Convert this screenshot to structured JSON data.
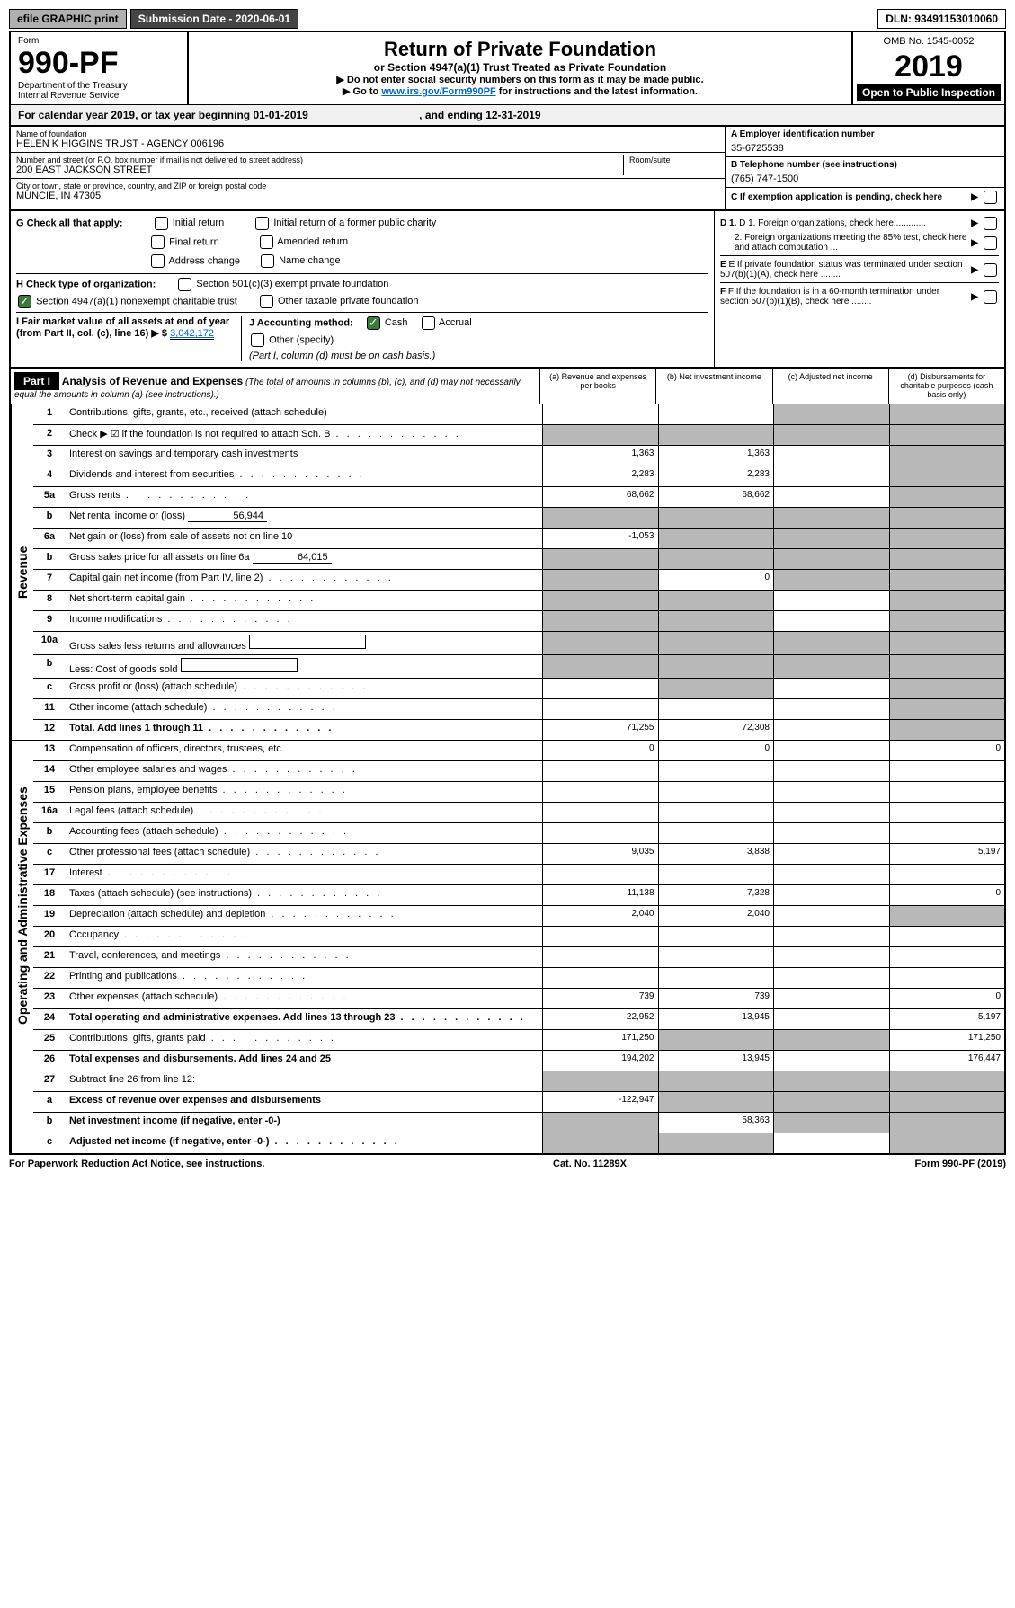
{
  "top": {
    "efile": "efile GRAPHIC print",
    "submission": "Submission Date - 2020-06-01",
    "dln": "DLN: 93491153010060"
  },
  "header": {
    "form_word": "Form",
    "form_num": "990-PF",
    "dept": "Department of the Treasury",
    "irs": "Internal Revenue Service",
    "title": "Return of Private Foundation",
    "subtitle": "or Section 4947(a)(1) Trust Treated as Private Foundation",
    "arrow1": "▶ Do not enter social security numbers on this form as it may be made public.",
    "arrow2_pre": "▶ Go to ",
    "arrow2_link": "www.irs.gov/Form990PF",
    "arrow2_post": " for instructions and the latest information.",
    "omb": "OMB No. 1545-0052",
    "year": "2019",
    "open": "Open to Public Inspection"
  },
  "cal": {
    "text_pre": "For calendar year 2019, or tax year beginning ",
    "begin": "01-01-2019",
    "text_mid": " , and ending ",
    "end": "12-31-2019"
  },
  "info": {
    "name_label": "Name of foundation",
    "name": "HELEN K HIGGINS TRUST - AGENCY 006196",
    "addr_label": "Number and street (or P.O. box number if mail is not delivered to street address)",
    "addr": "200 EAST JACKSON STREET",
    "room_label": "Room/suite",
    "city_label": "City or town, state or province, country, and ZIP or foreign postal code",
    "city": "MUNCIE, IN  47305",
    "a_label": "A Employer identification number",
    "a_val": "35-6725538",
    "b_label": "B Telephone number (see instructions)",
    "b_val": "(765) 747-1500",
    "c_label": "C If exemption application is pending, check here"
  },
  "checks": {
    "g": "G Check all that apply:",
    "g_items": [
      "Initial return",
      "Initial return of a former public charity",
      "Final return",
      "Amended return",
      "Address change",
      "Name change"
    ],
    "h": "H Check type of organization:",
    "h1": "Section 501(c)(3) exempt private foundation",
    "h2": "Section 4947(a)(1) nonexempt charitable trust",
    "h3": "Other taxable private foundation",
    "i": "I Fair market value of all assets at end of year (from Part II, col. (c), line 16) ▶ $",
    "i_val": "3,042,172",
    "j": "J Accounting method:",
    "j1": "Cash",
    "j2": "Accrual",
    "j3": "Other (specify)",
    "j_note": "(Part I, column (d) must be on cash basis.)",
    "d1": "D 1. Foreign organizations, check here.............",
    "d2": "2. Foreign organizations meeting the 85% test, check here and attach computation ...",
    "e": "E  If private foundation status was terminated under section 507(b)(1)(A), check here ........",
    "f": "F  If the foundation is in a 60-month termination under section 507(b)(1)(B), check here ........"
  },
  "part1": {
    "label": "Part I",
    "title": "Analysis of Revenue and Expenses",
    "note": " (The total of amounts in columns (b), (c), and (d) may not necessarily equal the amounts in column (a) (see instructions).)",
    "col_a": "(a) Revenue and expenses per books",
    "col_b": "(b) Net investment income",
    "col_c": "(c) Adjusted net income",
    "col_d": "(d) Disbursements for charitable purposes (cash basis only)"
  },
  "sides": {
    "revenue": "Revenue",
    "expenses": "Operating and Administrative Expenses"
  },
  "rows": [
    {
      "n": "1",
      "d": "Contributions, gifts, grants, etc., received (attach schedule)",
      "a": "",
      "b": "",
      "c": "g",
      "dd": "g"
    },
    {
      "n": "2",
      "d": "Check ▶ ☑ if the foundation is not required to attach Sch. B",
      "a": "g",
      "b": "g",
      "c": "g",
      "dd": "g",
      "dots": true
    },
    {
      "n": "3",
      "d": "Interest on savings and temporary cash investments",
      "a": "1,363",
      "b": "1,363",
      "c": "",
      "dd": "g"
    },
    {
      "n": "4",
      "d": "Dividends and interest from securities",
      "a": "2,283",
      "b": "2,283",
      "c": "",
      "dd": "g",
      "dots": true
    },
    {
      "n": "5a",
      "d": "Gross rents",
      "a": "68,662",
      "b": "68,662",
      "c": "",
      "dd": "g",
      "dots": true
    },
    {
      "n": "b",
      "d": "Net rental income or (loss)",
      "a": "g",
      "b": "g",
      "c": "g",
      "dd": "g",
      "inline": "56,944"
    },
    {
      "n": "6a",
      "d": "Net gain or (loss) from sale of assets not on line 10",
      "a": "-1,053",
      "b": "g",
      "c": "g",
      "dd": "g"
    },
    {
      "n": "b",
      "d": "Gross sales price for all assets on line 6a",
      "a": "g",
      "b": "g",
      "c": "g",
      "dd": "g",
      "inline": "64,015"
    },
    {
      "n": "7",
      "d": "Capital gain net income (from Part IV, line 2)",
      "a": "g",
      "b": "0",
      "c": "g",
      "dd": "g",
      "dots": true
    },
    {
      "n": "8",
      "d": "Net short-term capital gain",
      "a": "g",
      "b": "g",
      "c": "",
      "dd": "g",
      "dots": true
    },
    {
      "n": "9",
      "d": "Income modifications",
      "a": "g",
      "b": "g",
      "c": "",
      "dd": "g",
      "dots": true
    },
    {
      "n": "10a",
      "d": "Gross sales less returns and allowances",
      "a": "g",
      "b": "g",
      "c": "g",
      "dd": "g",
      "box": true
    },
    {
      "n": "b",
      "d": "Less: Cost of goods sold",
      "a": "g",
      "b": "g",
      "c": "g",
      "dd": "g",
      "dots": true,
      "box": true
    },
    {
      "n": "c",
      "d": "Gross profit or (loss) (attach schedule)",
      "a": "",
      "b": "g",
      "c": "",
      "dd": "g",
      "dots": true
    },
    {
      "n": "11",
      "d": "Other income (attach schedule)",
      "a": "",
      "b": "",
      "c": "",
      "dd": "g",
      "dots": true
    },
    {
      "n": "12",
      "d": "Total. Add lines 1 through 11",
      "a": "71,255",
      "b": "72,308",
      "c": "",
      "dd": "g",
      "bold": true,
      "dots": true
    }
  ],
  "exp_rows": [
    {
      "n": "13",
      "d": "Compensation of officers, directors, trustees, etc.",
      "a": "0",
      "b": "0",
      "c": "",
      "dd": "0"
    },
    {
      "n": "14",
      "d": "Other employee salaries and wages",
      "a": "",
      "b": "",
      "c": "",
      "dd": "",
      "dots": true
    },
    {
      "n": "15",
      "d": "Pension plans, employee benefits",
      "a": "",
      "b": "",
      "c": "",
      "dd": "",
      "dots": true
    },
    {
      "n": "16a",
      "d": "Legal fees (attach schedule)",
      "a": "",
      "b": "",
      "c": "",
      "dd": "",
      "dots": true
    },
    {
      "n": "b",
      "d": "Accounting fees (attach schedule)",
      "a": "",
      "b": "",
      "c": "",
      "dd": "",
      "dots": true
    },
    {
      "n": "c",
      "d": "Other professional fees (attach schedule)",
      "a": "9,035",
      "b": "3,838",
      "c": "",
      "dd": "5,197",
      "dots": true
    },
    {
      "n": "17",
      "d": "Interest",
      "a": "",
      "b": "",
      "c": "",
      "dd": "",
      "dots": true
    },
    {
      "n": "18",
      "d": "Taxes (attach schedule) (see instructions)",
      "a": "11,138",
      "b": "7,328",
      "c": "",
      "dd": "0",
      "dots": true
    },
    {
      "n": "19",
      "d": "Depreciation (attach schedule) and depletion",
      "a": "2,040",
      "b": "2,040",
      "c": "",
      "dd": "g",
      "dots": true
    },
    {
      "n": "20",
      "d": "Occupancy",
      "a": "",
      "b": "",
      "c": "",
      "dd": "",
      "dots": true
    },
    {
      "n": "21",
      "d": "Travel, conferences, and meetings",
      "a": "",
      "b": "",
      "c": "",
      "dd": "",
      "dots": true
    },
    {
      "n": "22",
      "d": "Printing and publications",
      "a": "",
      "b": "",
      "c": "",
      "dd": "",
      "dots": true
    },
    {
      "n": "23",
      "d": "Other expenses (attach schedule)",
      "a": "739",
      "b": "739",
      "c": "",
      "dd": "0",
      "dots": true
    },
    {
      "n": "24",
      "d": "Total operating and administrative expenses. Add lines 13 through 23",
      "a": "22,952",
      "b": "13,945",
      "c": "",
      "dd": "5,197",
      "bold": true,
      "dots": true
    },
    {
      "n": "25",
      "d": "Contributions, gifts, grants paid",
      "a": "171,250",
      "b": "g",
      "c": "g",
      "dd": "171,250",
      "dots": true
    },
    {
      "n": "26",
      "d": "Total expenses and disbursements. Add lines 24 and 25",
      "a": "194,202",
      "b": "13,945",
      "c": "",
      "dd": "176,447",
      "bold": true
    }
  ],
  "final_rows": [
    {
      "n": "27",
      "d": "Subtract line 26 from line 12:",
      "a": "g",
      "b": "g",
      "c": "g",
      "dd": "g"
    },
    {
      "n": "a",
      "d": "Excess of revenue over expenses and disbursements",
      "a": "-122,947",
      "b": "g",
      "c": "g",
      "dd": "g",
      "bold": true
    },
    {
      "n": "b",
      "d": "Net investment income (if negative, enter -0-)",
      "a": "g",
      "b": "58,363",
      "c": "g",
      "dd": "g",
      "bold": true
    },
    {
      "n": "c",
      "d": "Adjusted net income (if negative, enter -0-)",
      "a": "g",
      "b": "g",
      "c": "",
      "dd": "g",
      "bold": true,
      "dots": true
    }
  ],
  "footer": {
    "left": "For Paperwork Reduction Act Notice, see instructions.",
    "mid": "Cat. No. 11289X",
    "right": "Form 990-PF (2019)"
  }
}
